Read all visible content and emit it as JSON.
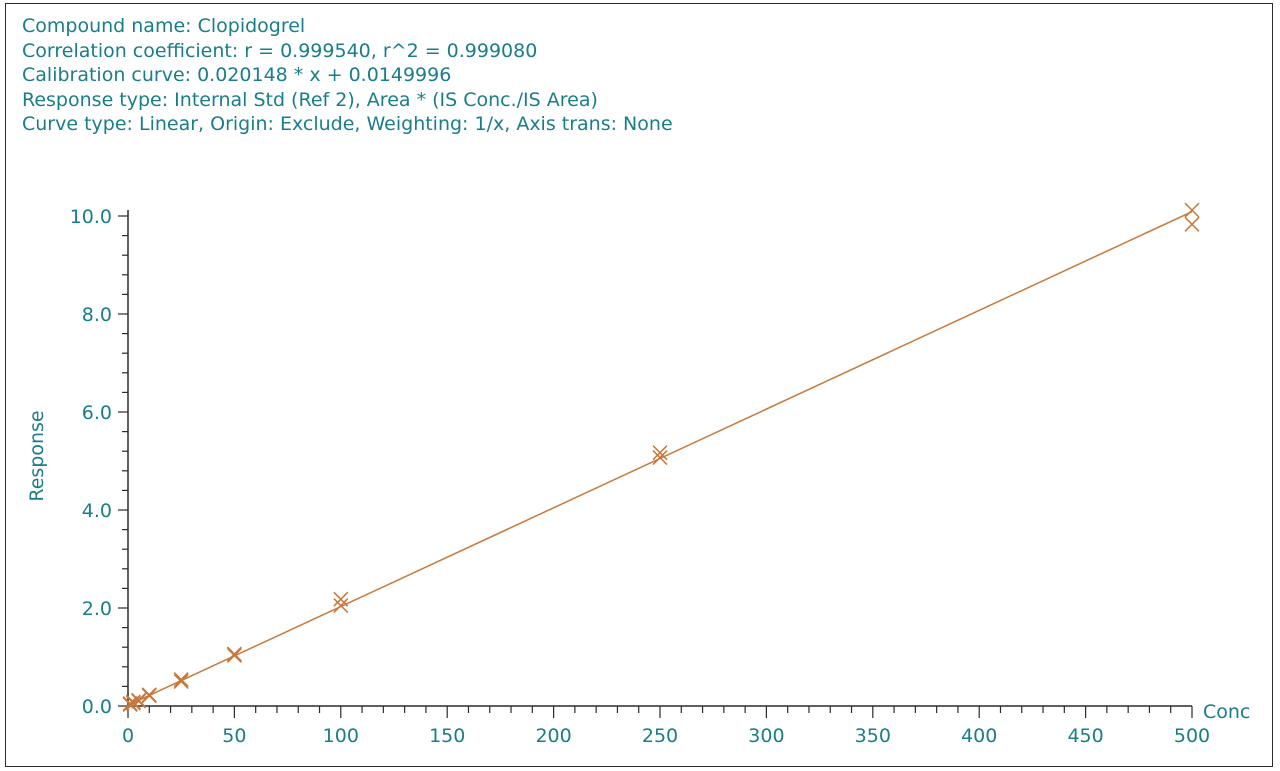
{
  "header": {
    "compound": "Compound name: Clopidogrel",
    "correlation": "Correlation coefficient: r = 0.999540, r^2 = 0.999080",
    "calibration": "Calibration curve: 0.020148 * x + 0.0149996",
    "response_type": "Response type: Internal Std (Ref 2), Area * (IS Conc./IS Area)",
    "curve_type": "Curve type: Linear, Origin: Exclude, Weighting: 1/x, Axis trans: None"
  },
  "colors": {
    "text": "#1a7d8a",
    "axis": "#2b2b2b",
    "series": "#c8783a"
  },
  "chart_data": {
    "type": "scatter",
    "xlabel": "Conc",
    "ylabel": "Response",
    "xlim": [
      0,
      500
    ],
    "ylim": [
      0,
      10
    ],
    "x_ticks": [
      "0",
      "50",
      "100",
      "150",
      "200",
      "250",
      "300",
      "350",
      "400",
      "450",
      "500"
    ],
    "y_ticks": [
      "0.0",
      "2.0",
      "4.0",
      "6.0",
      "8.0",
      "10.0"
    ],
    "fit": {
      "slope": 0.020148,
      "intercept": 0.0149996
    },
    "points": [
      {
        "x": 1,
        "y": 0.03
      },
      {
        "x": 1,
        "y": 0.05
      },
      {
        "x": 2.5,
        "y": 0.06
      },
      {
        "x": 2.5,
        "y": 0.08
      },
      {
        "x": 5,
        "y": 0.1
      },
      {
        "x": 5,
        "y": 0.12
      },
      {
        "x": 10,
        "y": 0.21
      },
      {
        "x": 10,
        "y": 0.23
      },
      {
        "x": 25,
        "y": 0.5
      },
      {
        "x": 25,
        "y": 0.54
      },
      {
        "x": 50,
        "y": 1.03
      },
      {
        "x": 50,
        "y": 1.06
      },
      {
        "x": 100,
        "y": 2.05
      },
      {
        "x": 100,
        "y": 2.18
      },
      {
        "x": 250,
        "y": 5.07
      },
      {
        "x": 250,
        "y": 5.17
      },
      {
        "x": 500,
        "y": 9.83
      },
      {
        "x": 500,
        "y": 10.12
      }
    ]
  }
}
